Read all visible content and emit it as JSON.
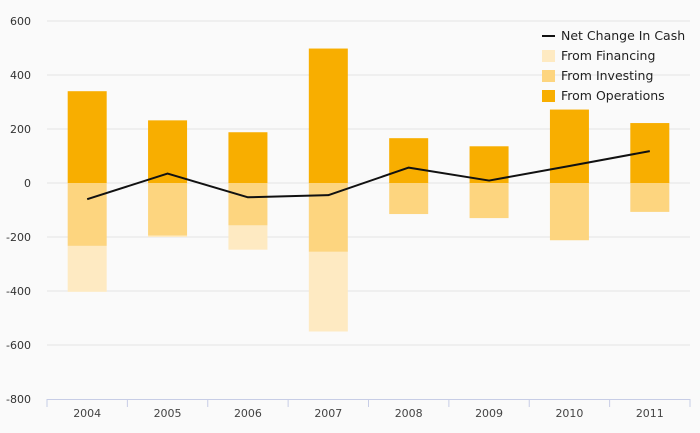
{
  "colors": {
    "operations": "#f8ae00",
    "investing": "#fdd57f",
    "financing": "#feeac2",
    "net_line": "#111111",
    "grid": "#e4e4e4",
    "axis": "#c7cde6",
    "background": "#fafafa"
  },
  "chart_data": {
    "type": "bar",
    "stacked": true,
    "categories": [
      "2004",
      "2005",
      "2006",
      "2007",
      "2008",
      "2009",
      "2010",
      "2011"
    ],
    "series": [
      {
        "name": "From Operations",
        "kind": "bar",
        "values": [
          340,
          232,
          188,
          498,
          166,
          136,
          272,
          222
        ]
      },
      {
        "name": "From Investing",
        "kind": "bar",
        "values": [
          -233,
          -195,
          -157,
          -255,
          -115,
          -130,
          -212,
          -107
        ]
      },
      {
        "name": "From Financing",
        "kind": "bar",
        "values": [
          -170,
          -5,
          -90,
          -295,
          0,
          0,
          0,
          0
        ]
      },
      {
        "name": "Net Change In Cash",
        "kind": "line",
        "values": [
          -60,
          35,
          -53,
          -45,
          57,
          9,
          63,
          118
        ]
      }
    ],
    "ylim": [
      -800,
      600
    ],
    "yticks": [
      "600",
      "400",
      "200",
      "0",
      "-200",
      "-400",
      "-600",
      "-800"
    ],
    "grid": true,
    "legend_position": "top-right",
    "legend": [
      "Net Change In Cash",
      "From Financing",
      "From Investing",
      "From Operations"
    ]
  }
}
